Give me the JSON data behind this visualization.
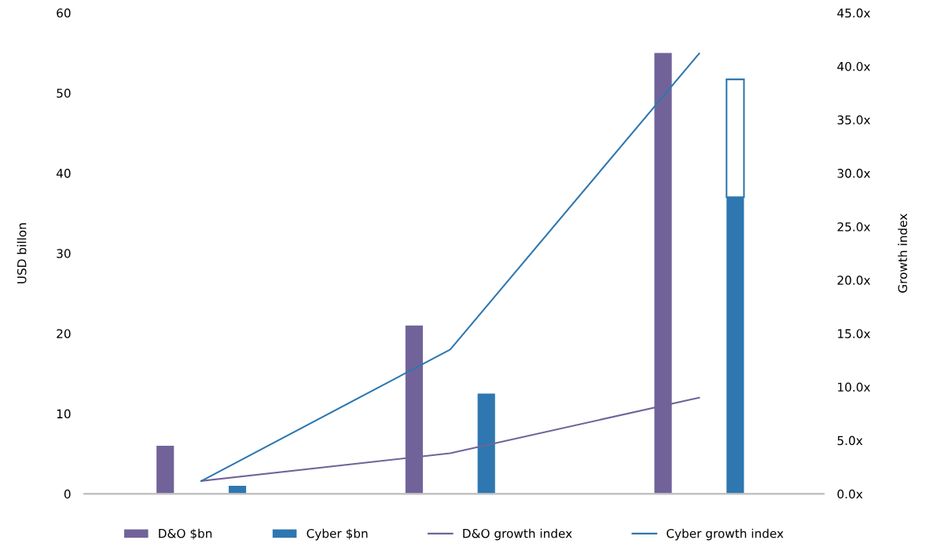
{
  "chart_data": {
    "type": "bar",
    "categories": [
      null,
      null,
      null
    ],
    "ylabel": "USD billon",
    "y2label": "Growth index",
    "ylim": [
      0,
      60
    ],
    "yticks": [
      0,
      10,
      20,
      30,
      40,
      50,
      60
    ],
    "y2lim": [
      0,
      45
    ],
    "y2ticks": [
      {
        "value": 0,
        "label": "0.0x"
      },
      {
        "value": 5,
        "label": "5.0x"
      },
      {
        "value": 10,
        "label": "10.0x"
      },
      {
        "value": 15,
        "label": "15.0x"
      },
      {
        "value": 20,
        "label": "20.0x"
      },
      {
        "value": 25,
        "label": "25.0x"
      },
      {
        "value": 30,
        "label": "30.0x"
      },
      {
        "value": 35,
        "label": "35.0x"
      },
      {
        "value": 40,
        "label": "40.0x"
      },
      {
        "value": 45,
        "label": "45.0x"
      }
    ],
    "series": [
      {
        "name": "D&O $bn",
        "color": "#71639a",
        "values": [
          6,
          21,
          55
        ]
      },
      {
        "name": "Cyber $bn",
        "color": "#2e77b0",
        "values": [
          1,
          12.5,
          37
        ]
      },
      {
        "color": "#ffffff",
        "values": [
          null,
          null,
          14.7
        ],
        "base": [
          null,
          null,
          37
        ]
      },
      {
        "name": "D&O growth index",
        "type": "line",
        "axis": "y2",
        "color": "#71639a",
        "values": [
          1.2,
          3.8,
          9.0
        ]
      },
      {
        "name": "Cyber growth index",
        "type": "line",
        "axis": "y2",
        "color": "#2e77b0",
        "values": [
          1.2,
          13.5,
          41.2
        ]
      }
    ],
    "legend": "bottom",
    "grid": false,
    "marker": "none",
    "line_style": "solid"
  }
}
